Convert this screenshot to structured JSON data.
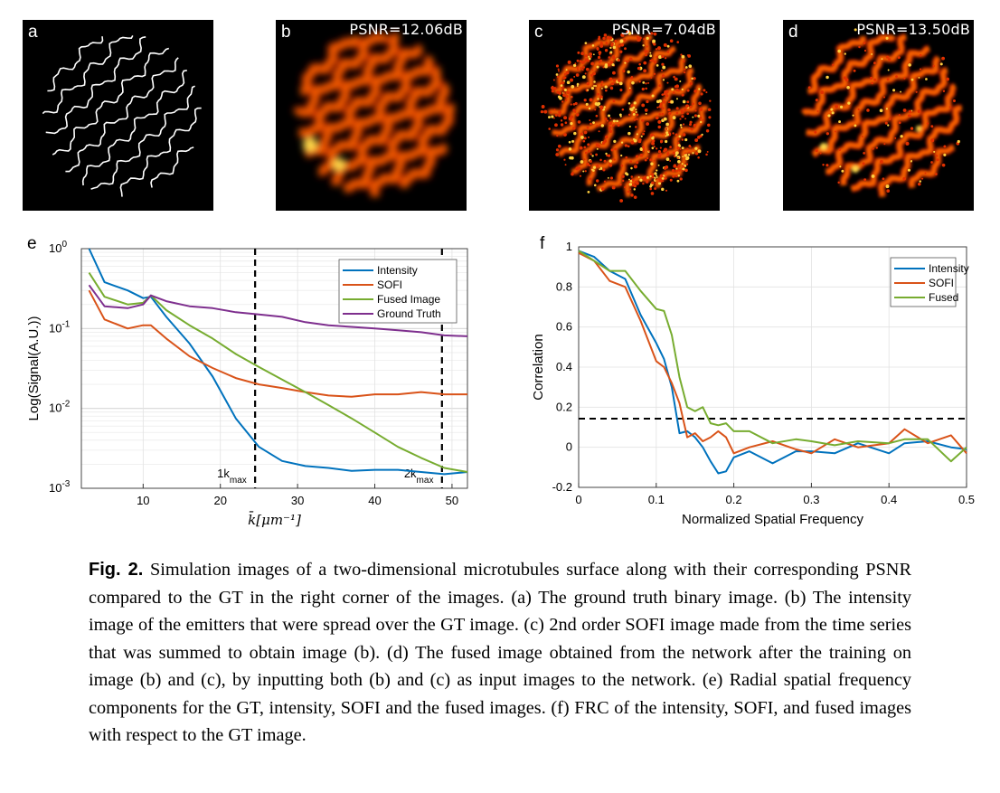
{
  "panels": [
    {
      "label": "a",
      "psnr": ""
    },
    {
      "label": "b",
      "psnr": "PSNR=12.06dB"
    },
    {
      "label": "c",
      "psnr": "PSNR=7.04dB"
    },
    {
      "label": "d",
      "psnr": "PSNR=13.50dB"
    }
  ],
  "chart_data": [
    {
      "panel": "e",
      "type": "line",
      "xlabel": "k̄[μm⁻¹]",
      "ylabel": "Log(Signal(A.U.))",
      "xlim": [
        2,
        52
      ],
      "ylim": [
        0.001,
        1
      ],
      "yscale": "log",
      "xticks": [
        "10",
        "20",
        "30",
        "40",
        "50"
      ],
      "yticks_exp": [
        "0",
        "-1",
        "-2",
        "-3"
      ],
      "grid": true,
      "legend_position": "top-right",
      "colors": {
        "Intensity": "#0072BD",
        "SOFI": "#D95319",
        "Fused Image": "#77AC30",
        "Ground Truth": "#7E2F8E"
      },
      "x": [
        3,
        5,
        8,
        10,
        11,
        13,
        16,
        19,
        22,
        25,
        28,
        31,
        34,
        37,
        40,
        43,
        46,
        49,
        52
      ],
      "series": [
        {
          "name": "Intensity",
          "values": [
            1.0,
            0.38,
            0.3,
            0.24,
            0.25,
            0.14,
            0.065,
            0.025,
            0.0075,
            0.0033,
            0.0022,
            0.0019,
            0.0018,
            0.00165,
            0.0017,
            0.0017,
            0.0016,
            0.0015,
            0.0016
          ]
        },
        {
          "name": "SOFI",
          "values": [
            0.3,
            0.13,
            0.1,
            0.11,
            0.11,
            0.075,
            0.045,
            0.032,
            0.024,
            0.02,
            0.018,
            0.016,
            0.0145,
            0.014,
            0.015,
            0.015,
            0.016,
            0.015,
            0.015
          ]
        },
        {
          "name": "Fused Image",
          "values": [
            0.5,
            0.25,
            0.2,
            0.21,
            0.26,
            0.17,
            0.11,
            0.075,
            0.048,
            0.033,
            0.023,
            0.016,
            0.011,
            0.0075,
            0.005,
            0.0033,
            0.0024,
            0.0018,
            0.0016
          ]
        },
        {
          "name": "Ground Truth",
          "values": [
            0.35,
            0.19,
            0.18,
            0.2,
            0.26,
            0.22,
            0.19,
            0.18,
            0.16,
            0.15,
            0.14,
            0.12,
            0.11,
            0.105,
            0.1,
            0.095,
            0.09,
            0.082,
            0.08
          ]
        }
      ],
      "vlines": [
        {
          "x": 24.5,
          "label": "1k",
          "sub": "max"
        },
        {
          "x": 48.7,
          "label": "2k",
          "sub": "max"
        }
      ]
    },
    {
      "panel": "f",
      "type": "line",
      "xlabel": "Normalized Spatial Frequency",
      "ylabel": "Correlation",
      "xlim": [
        0,
        0.5
      ],
      "ylim": [
        -0.2,
        1
      ],
      "xticks": [
        "0",
        "0.1",
        "0.2",
        "0.3",
        "0.4",
        "0.5"
      ],
      "yticks": [
        "1",
        "0.8",
        "0.6",
        "0.4",
        "0.2",
        "0",
        "-0.2"
      ],
      "grid": true,
      "legend_position": "top-right",
      "threshold": 0.143,
      "colors": {
        "Intensity": "#0072BD",
        "SOFI": "#D95319",
        "Fused": "#77AC30"
      },
      "x": [
        0,
        0.02,
        0.04,
        0.06,
        0.08,
        0.1,
        0.11,
        0.12,
        0.13,
        0.14,
        0.15,
        0.16,
        0.17,
        0.18,
        0.19,
        0.2,
        0.22,
        0.25,
        0.28,
        0.3,
        0.33,
        0.36,
        0.4,
        0.42,
        0.45,
        0.48,
        0.5
      ],
      "series": [
        {
          "name": "Intensity",
          "values": [
            0.98,
            0.95,
            0.88,
            0.84,
            0.66,
            0.52,
            0.44,
            0.3,
            0.07,
            0.08,
            0.05,
            0.0,
            -0.07,
            -0.13,
            -0.12,
            -0.05,
            -0.02,
            -0.08,
            -0.02,
            -0.02,
            -0.03,
            0.02,
            -0.03,
            0.02,
            0.03,
            0.0,
            -0.01
          ]
        },
        {
          "name": "SOFI",
          "values": [
            0.97,
            0.93,
            0.83,
            0.8,
            0.63,
            0.43,
            0.4,
            0.32,
            0.22,
            0.05,
            0.07,
            0.03,
            0.05,
            0.08,
            0.05,
            -0.03,
            0.0,
            0.03,
            -0.01,
            -0.03,
            0.04,
            0.0,
            0.02,
            0.09,
            0.02,
            0.06,
            -0.03
          ]
        },
        {
          "name": "Fused",
          "values": [
            0.98,
            0.93,
            0.88,
            0.88,
            0.78,
            0.69,
            0.68,
            0.56,
            0.35,
            0.2,
            0.18,
            0.2,
            0.12,
            0.11,
            0.12,
            0.08,
            0.08,
            0.02,
            0.04,
            0.03,
            0.01,
            0.03,
            0.02,
            0.04,
            0.04,
            -0.07,
            0.0
          ]
        }
      ]
    }
  ],
  "caption": {
    "fig": "Fig. 2.",
    "text": "Simulation images of a two-dimensional microtubules surface along with their corresponding PSNR compared to the GT in the right corner of the images. (a) The ground truth binary image. (b) The intensity image of the emitters that were spread over the GT image. (c) 2nd order SOFI image made from the time series that was summed to obtain image (b). (d) The fused image obtained from the network after the training on image (b) and (c), by inputting both (b) and (c) as input images to the network. (e) Radial spatial frequency components for the GT, intensity, SOFI and the fused images. (f) FRC of the intensity, SOFI, and fused images with respect to the GT image."
  }
}
